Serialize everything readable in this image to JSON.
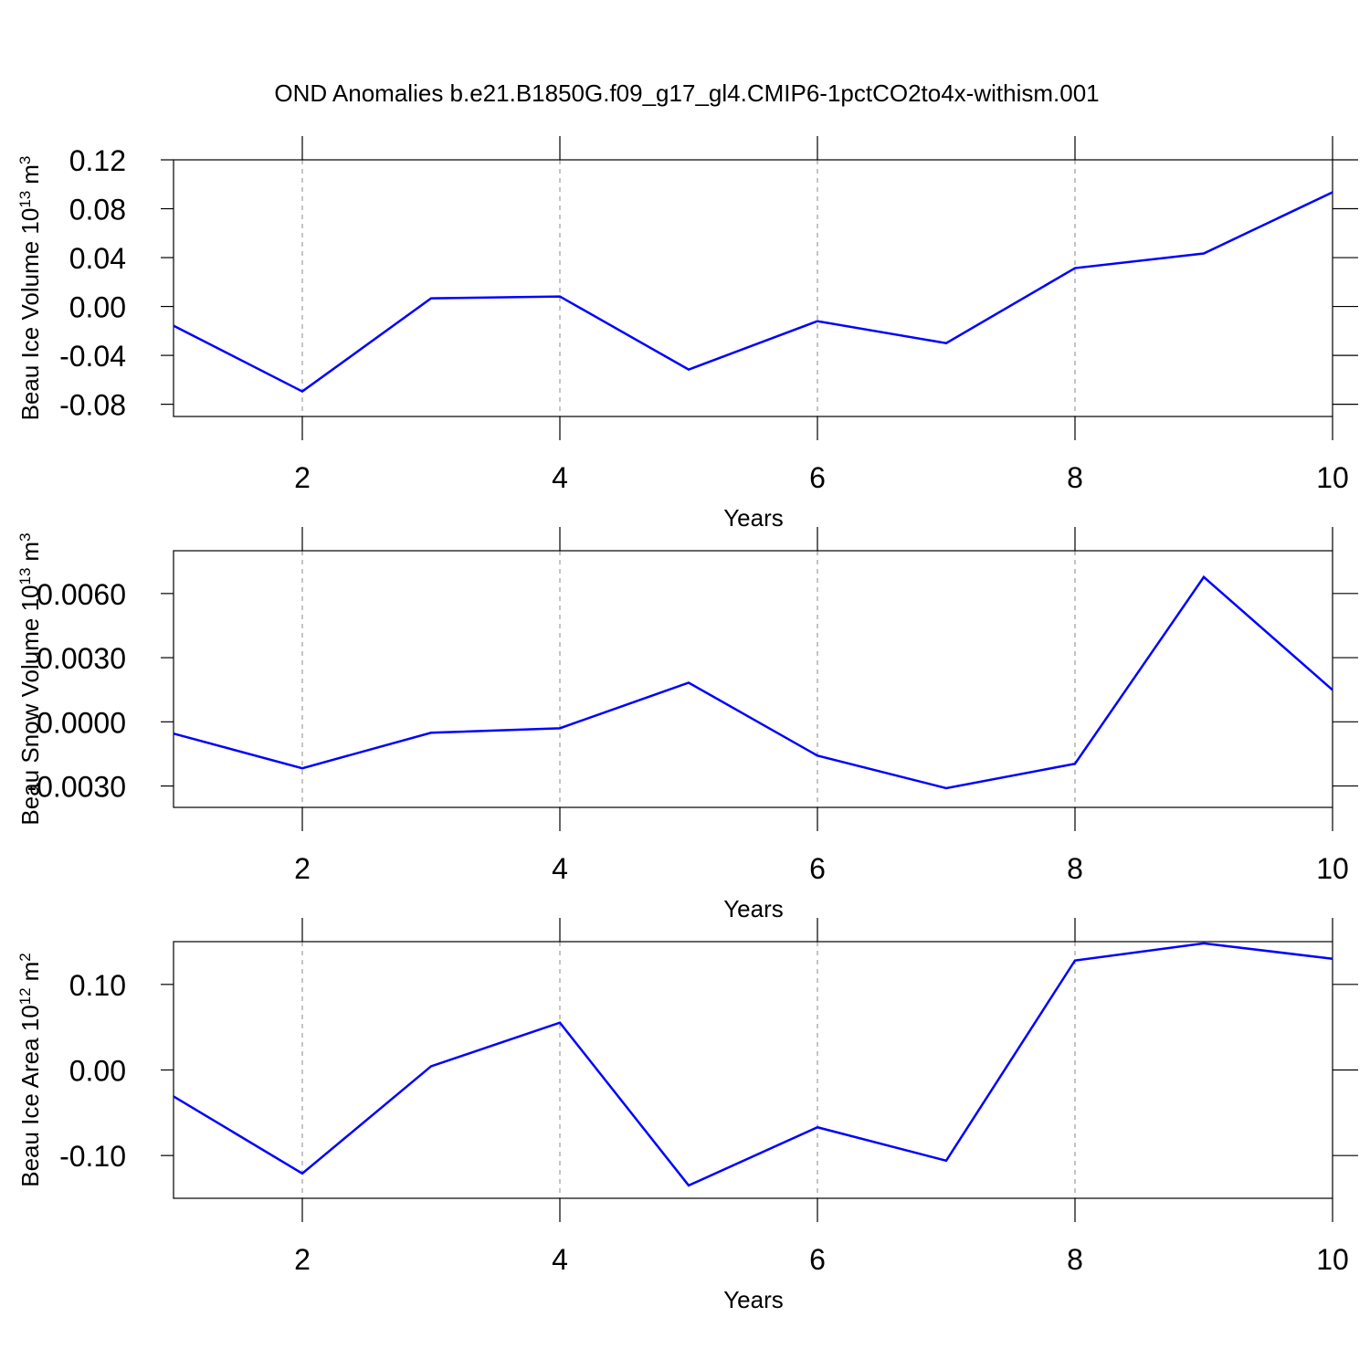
{
  "chart_data": [
    {
      "type": "line",
      "title": "OND Anomalies b.e21.B1850G.f09_g17_gl4.CMIP6-1pctCO2to4x-withism.001",
      "ylabel": [
        "Beau Ice Volume 10",
        "13",
        "m",
        "3"
      ],
      "xlabel": "Years",
      "x": [
        1,
        2,
        3,
        4,
        5,
        6,
        7,
        8,
        9,
        10
      ],
      "series": [
        {
          "color": "#0000ff",
          "values": [
            -0.0157,
            -0.0695,
            0.0067,
            0.0082,
            -0.0516,
            -0.012,
            -0.03,
            0.0314,
            0.0434,
            0.0935
          ]
        }
      ],
      "xlim": [
        1,
        10
      ],
      "xticks": [
        2,
        4,
        6,
        8,
        10
      ],
      "ylim": [
        -0.09,
        0.12
      ],
      "yticks": [
        0.12,
        0.08,
        0.04,
        {
          "value": 0,
          "label": "0.00"
        },
        -0.04,
        -0.08
      ],
      "grid": "x"
    },
    {
      "type": "line",
      "ylabel": [
        "Beau Snow Volume 10",
        "13",
        "m",
        "3"
      ],
      "xlabel": "Years",
      "x": [
        1,
        2,
        3,
        4,
        5,
        6,
        7,
        8,
        9,
        10
      ],
      "series": [
        {
          "color": "#0000ff",
          "values": [
            -0.00055,
            -0.00217,
            -0.00051,
            -0.0003,
            0.00183,
            -0.00158,
            -0.0031,
            -0.00196,
            0.00677,
            0.00149
          ]
        }
      ],
      "xlim": [
        1,
        10
      ],
      "xticks": [
        2,
        4,
        6,
        8,
        10
      ],
      "ylim": [
        -0.004,
        0.008
      ],
      "yticks": [
        {
          "value": 0.006,
          "label": "0.0060"
        },
        {
          "value": 0.003,
          "label": "0.0030"
        },
        {
          "value": 0,
          "label": "0.0000"
        },
        {
          "value": -0.003,
          "label": "-0.0030"
        }
      ],
      "grid": "x"
    },
    {
      "type": "line",
      "ylabel": [
        "Beau Ice Area 10",
        "12",
        "m",
        "2"
      ],
      "xlabel": "Years",
      "x": [
        1,
        2,
        3,
        4,
        5,
        6,
        7,
        8,
        9,
        10
      ],
      "series": [
        {
          "color": "#0000ff",
          "values": [
            -0.0309,
            -0.121,
            0.0043,
            0.0553,
            -0.135,
            -0.067,
            -0.106,
            0.128,
            0.148,
            0.13
          ]
        }
      ],
      "xlim": [
        1,
        10
      ],
      "xticks": [
        2,
        4,
        6,
        8,
        10
      ],
      "ylim": [
        -0.15,
        0.15
      ],
      "yticks": [
        {
          "value": 0.1,
          "label": "0.10"
        },
        {
          "value": 0,
          "label": "0.00"
        },
        {
          "value": -0.1,
          "label": "-0.10"
        }
      ],
      "grid": "x"
    }
  ]
}
